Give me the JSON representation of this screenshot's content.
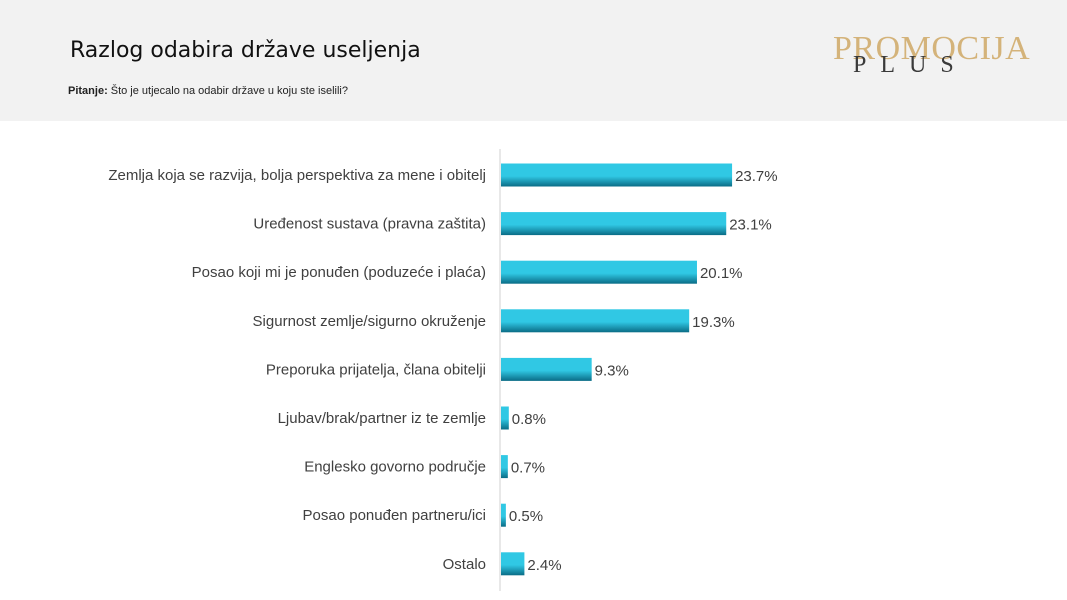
{
  "header": {
    "title": "Razlog odabira države useljenja",
    "question_label": "Pitanje:",
    "question_text": "Što je utjecalo na odabir države u koju ste iselili?"
  },
  "logo": {
    "main": "PROMOCIJA",
    "sub": "PLUS"
  },
  "colors": {
    "header_bg": "#f2f2f2",
    "bar_light": "#30c8e4",
    "bar_dark": "#0a6c86",
    "axis": "#d0d0d0",
    "logo_gold": "#d4b37a"
  },
  "chart_data": {
    "type": "bar",
    "orientation": "horizontal",
    "title": "Razlog odabira države useljenja",
    "xlabel": "",
    "ylabel": "",
    "xlim": [
      0,
      100
    ],
    "grid": false,
    "categories": [
      "Zemlja koja se razvija, bolja perspektiva za mene i obitelj",
      "Uređenost sustava (pravna zaštita)",
      "Posao koji mi je ponuđen (poduzeće i plaća)",
      "Sigurnost zemlje/sigurno okruženje",
      "Preporuka prijatelja, člana obitelji",
      "Ljubav/brak/partner iz te zemlje",
      "Englesko govorno područje",
      "Posao ponuđen partneru/ici",
      "Ostalo"
    ],
    "values": [
      23.7,
      23.1,
      20.1,
      19.3,
      9.3,
      0.8,
      0.7,
      0.5,
      2.4
    ],
    "value_labels": [
      "23.7%",
      "23.1%",
      "20.1%",
      "19.3%",
      "9.3%",
      "0.8%",
      "0.7%",
      "0.5%",
      "2.4%"
    ]
  }
}
